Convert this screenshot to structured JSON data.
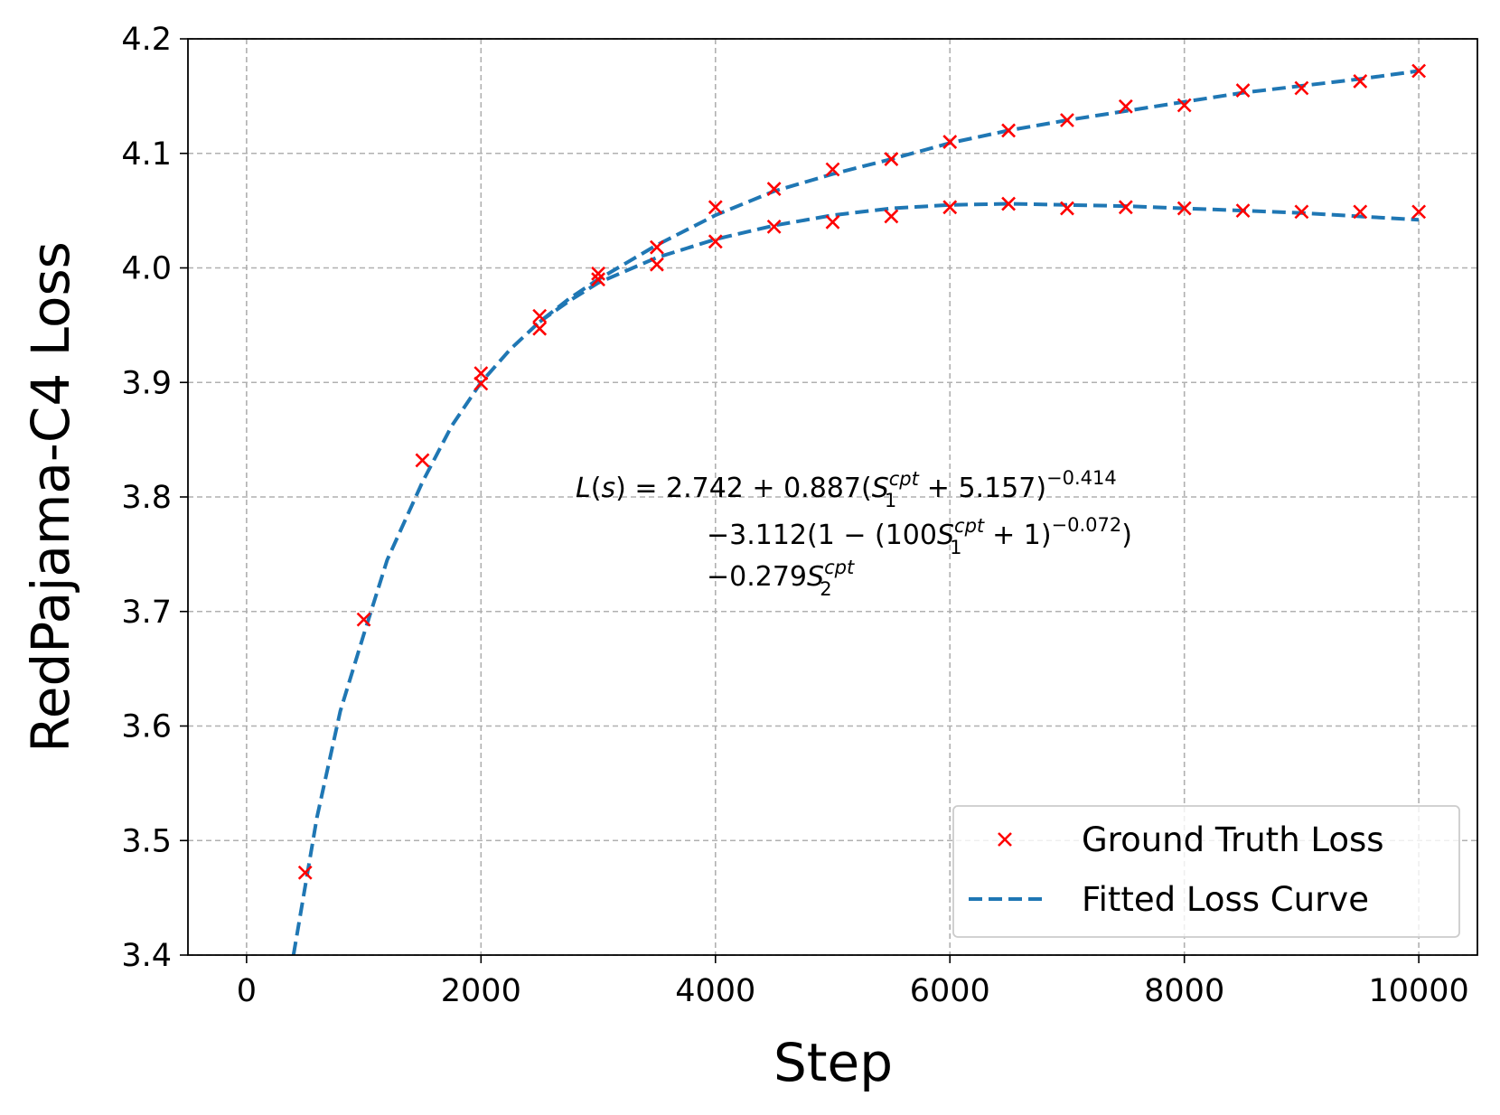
{
  "chart_data": {
    "type": "scatter",
    "title": "",
    "xlabel": "Step",
    "ylabel": "RedPajama-C4 Loss",
    "xlim": [
      -500,
      10500
    ],
    "ylim": [
      3.4,
      4.2
    ],
    "xticks": [
      0,
      2000,
      4000,
      6000,
      8000,
      10000
    ],
    "xtick_labels": [
      "0",
      "2000",
      "4000",
      "6000",
      "8000",
      "10000"
    ],
    "yticks": [
      3.4,
      3.5,
      3.6,
      3.7,
      3.8,
      3.9,
      4.0,
      4.1,
      4.2
    ],
    "ytick_labels": [
      "3.4",
      "3.5",
      "3.6",
      "3.7",
      "3.8",
      "3.9",
      "4.0",
      "4.1",
      "4.2"
    ],
    "grid": true,
    "legend_position": "lower-right",
    "series": [
      {
        "name": "Ground Truth Loss",
        "kind": "markers",
        "color": "#ff0000",
        "marker": "x",
        "points": [
          [
            500,
            3.472
          ],
          [
            1000,
            3.693
          ],
          [
            1500,
            3.832
          ],
          [
            2000,
            3.908
          ],
          [
            2000,
            3.899
          ],
          [
            2500,
            3.958
          ],
          [
            2500,
            3.947
          ],
          [
            3000,
            3.995
          ],
          [
            3000,
            3.99
          ],
          [
            3500,
            4.018
          ],
          [
            3500,
            4.003
          ],
          [
            4000,
            4.053
          ],
          [
            4000,
            4.023
          ],
          [
            4500,
            4.069
          ],
          [
            4500,
            4.036
          ],
          [
            5000,
            4.086
          ],
          [
            5000,
            4.04
          ],
          [
            5500,
            4.095
          ],
          [
            5500,
            4.045
          ],
          [
            6000,
            4.11
          ],
          [
            6000,
            4.053
          ],
          [
            6500,
            4.12
          ],
          [
            6500,
            4.056
          ],
          [
            7000,
            4.129
          ],
          [
            7000,
            4.052
          ],
          [
            7500,
            4.141
          ],
          [
            7500,
            4.053
          ],
          [
            8000,
            4.142
          ],
          [
            8000,
            4.052
          ],
          [
            8500,
            4.155
          ],
          [
            8500,
            4.05
          ],
          [
            9000,
            4.157
          ],
          [
            9000,
            4.049
          ],
          [
            9500,
            4.163
          ],
          [
            9500,
            4.049
          ],
          [
            10000,
            4.172
          ],
          [
            10000,
            4.049
          ]
        ]
      },
      {
        "name": "Fitted Loss Curve",
        "kind": "dashed-line",
        "color": "#1f77b4",
        "x": [
          400,
          600,
          800,
          1000,
          1200,
          1500,
          1750,
          2000,
          2250,
          2500,
          2750,
          3000,
          3250,
          3500,
          3750,
          4000,
          4500,
          5000,
          5500,
          6000,
          6500,
          7000,
          7500,
          8000,
          8500,
          9000,
          9500,
          10000
        ],
        "y": [
          3.4,
          3.52,
          3.613,
          3.68,
          3.745,
          3.813,
          3.862,
          3.9,
          3.929,
          3.953,
          3.973,
          3.99,
          4.005,
          4.02,
          4.033,
          4.046,
          4.067,
          4.082,
          4.095,
          4.109,
          4.12,
          4.129,
          4.137,
          4.145,
          4.153,
          4.159,
          4.165,
          4.172
        ]
      },
      {
        "name": "",
        "kind": "dashed-line",
        "color": "#1f77b4",
        "x": [
          2500,
          2750,
          3000,
          3250,
          3500,
          3750,
          4000,
          4500,
          5000,
          5500,
          6000,
          6500,
          7000,
          7500,
          8000,
          8500,
          9000,
          9500,
          10000
        ],
        "y": [
          3.953,
          3.971,
          3.987,
          3.998,
          4.009,
          4.017,
          4.025,
          4.037,
          4.046,
          4.052,
          4.055,
          4.056,
          4.055,
          4.054,
          4.052,
          4.05,
          4.048,
          4.045,
          4.042
        ]
      }
    ],
    "annotation": {
      "line1": "L(s) = 2.742 + 0.887(S1cpt + 5.157)−0.414",
      "line2": "−3.112(1 − (100S1cpt + 1)−0.072)",
      "line3": "−0.279S2cpt"
    }
  },
  "formula": {
    "l": "L",
    "s": "s",
    "open": "(",
    "close": ")",
    "eq": " = 2.742 + 0.887(",
    "S": "S",
    "sub1": "1",
    "cpt": "cpt",
    "p1": " + 5.157)",
    "e1": "−0.414",
    "m2a": "−3.112(1 − (100",
    "p2": " + 1)",
    "e2": "−0.072",
    "p2b": ")",
    "m3": "−0.279",
    "sub2": "2"
  }
}
